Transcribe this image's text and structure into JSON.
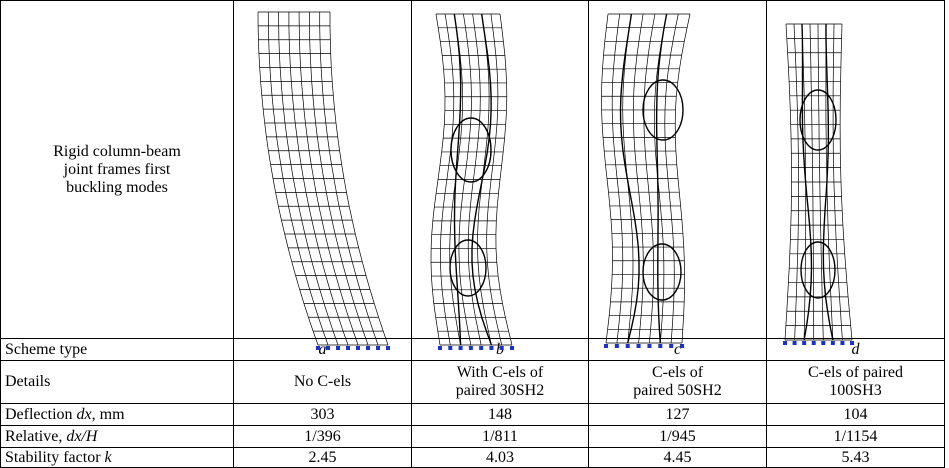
{
  "table": {
    "stub": [
      "Rigid column-beam",
      "joint frames first",
      "buckling modes"
    ],
    "rows": [
      {
        "label": [
          {
            "text": "Scheme type"
          }
        ],
        "italic_cells": true,
        "cells": [
          [
            "a"
          ],
          [
            "b"
          ],
          [
            "c"
          ],
          [
            "d"
          ]
        ]
      },
      {
        "label": [
          {
            "text": "Details"
          }
        ],
        "cells": [
          [
            "No C-els"
          ],
          [
            "With C-els of",
            "paired 30SH2"
          ],
          [
            "C-els of",
            "paired 50SH2"
          ],
          [
            "C-els of paired",
            "100SH3"
          ]
        ]
      },
      {
        "label": [
          {
            "text": "Deflection "
          },
          {
            "text": "dx",
            "italic": true
          },
          {
            "text": ", mm"
          }
        ],
        "cells": [
          [
            "303"
          ],
          [
            "148"
          ],
          [
            "127"
          ],
          [
            "104"
          ]
        ]
      },
      {
        "label": [
          {
            "text": "Relative, "
          },
          {
            "text": "dx/H",
            "italic": true
          }
        ],
        "cells": [
          [
            "1/396"
          ],
          [
            "1/811"
          ],
          [
            "1/945"
          ],
          [
            "1/1154"
          ]
        ]
      },
      {
        "label": [
          {
            "text": "Stability factor "
          },
          {
            "text": "k",
            "italic": true
          }
        ],
        "cells": [
          [
            "2.45"
          ],
          [
            "4.03"
          ],
          [
            "4.45"
          ],
          [
            "5.43"
          ]
        ]
      }
    ]
  }
}
